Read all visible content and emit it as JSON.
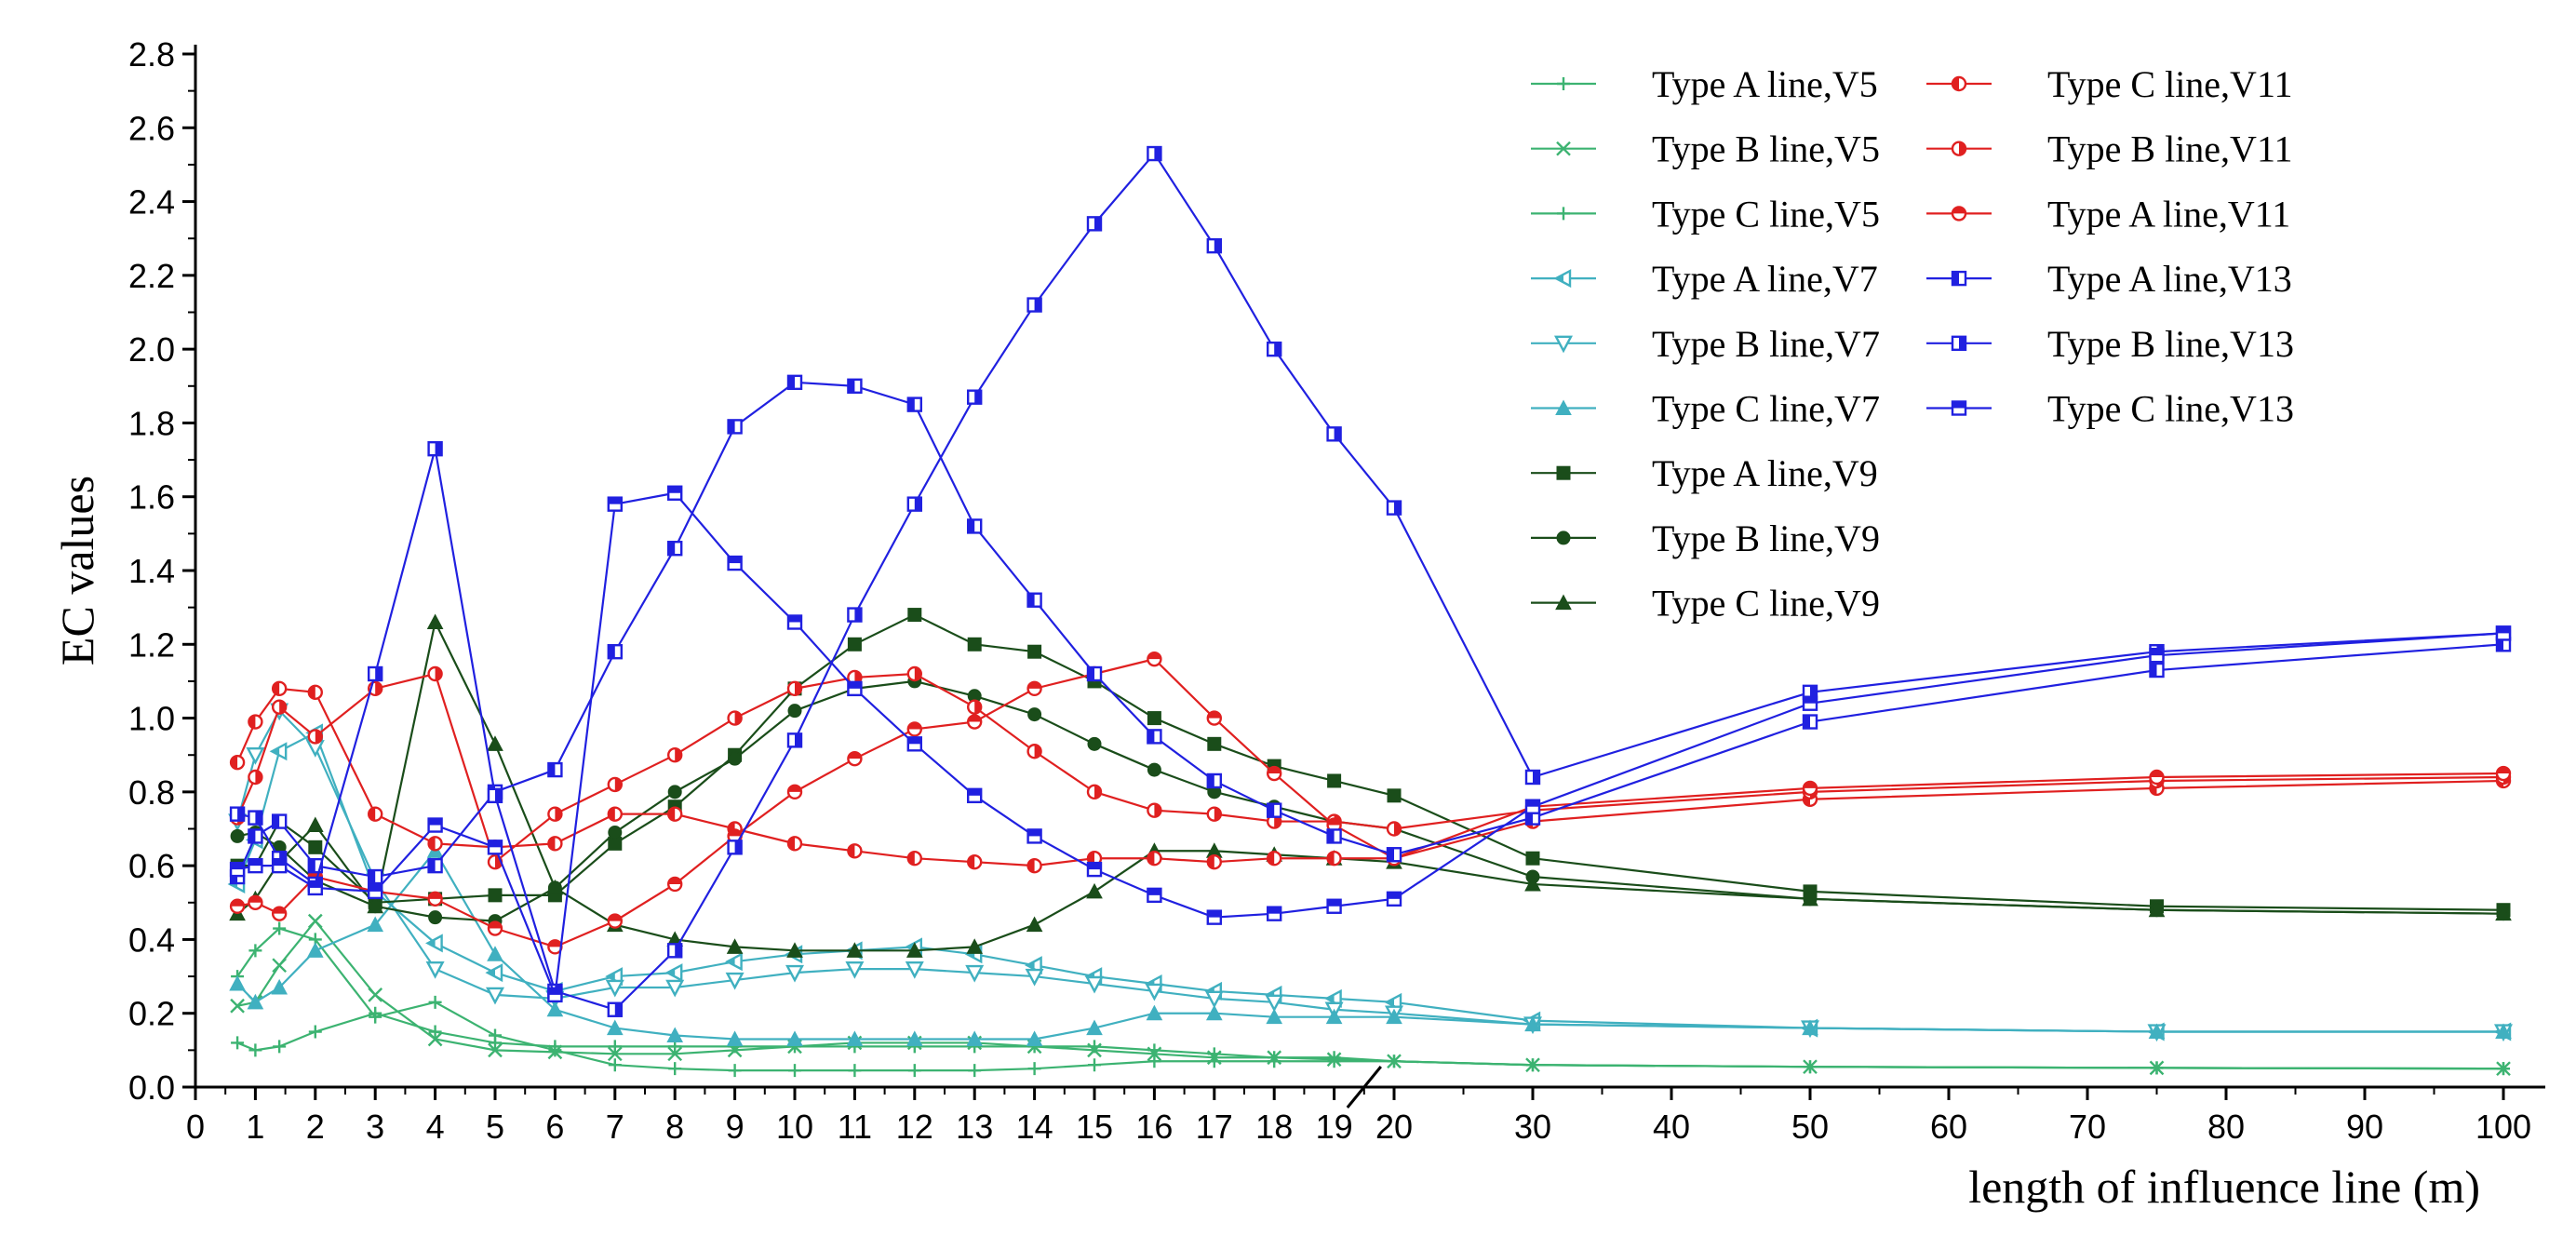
{
  "chart_data": {
    "type": "line",
    "title": "",
    "xlabel": "length of influence line (m)",
    "ylabel": "EC values",
    "ylim": [
      0,
      2.8
    ],
    "y_ticks": [
      "0.0",
      "0.2",
      "0.4",
      "0.6",
      "0.8",
      "1.0",
      "1.2",
      "1.4",
      "1.6",
      "1.8",
      "2.0",
      "2.2",
      "2.4",
      "2.6",
      "2.8"
    ],
    "x_ticks": [
      "0",
      "1",
      "2",
      "3",
      "4",
      "5",
      "6",
      "7",
      "8",
      "9",
      "10",
      "11",
      "12",
      "13",
      "14",
      "15",
      "16",
      "17",
      "18",
      "19",
      "20",
      "30",
      "40",
      "50",
      "60",
      "70",
      "80",
      "90",
      "100"
    ],
    "x_axis_note": "broken axis: linear 0-20 then compressed 20-100",
    "grid": false,
    "legend_position": "top-right",
    "x": [
      0.7,
      1,
      1.4,
      2,
      3,
      4,
      5,
      6,
      7,
      8,
      9,
      10,
      11,
      12,
      13,
      14,
      15,
      16,
      17,
      18,
      19,
      20,
      30,
      50,
      75,
      100
    ],
    "series": [
      {
        "name": "Type A line,V5",
        "color": "#3cb371",
        "marker": "plus",
        "values": [
          0.12,
          0.1,
          0.11,
          0.15,
          0.2,
          0.15,
          0.12,
          0.11,
          0.11,
          0.11,
          0.11,
          0.11,
          0.11,
          0.11,
          0.11,
          0.11,
          0.11,
          0.1,
          0.09,
          0.08,
          0.08,
          0.07,
          0.06,
          0.055,
          0.052,
          0.05
        ]
      },
      {
        "name": "Type B line,V5",
        "color": "#3cb371",
        "marker": "cross",
        "values": [
          0.22,
          0.23,
          0.33,
          0.45,
          0.25,
          0.13,
          0.1,
          0.095,
          0.09,
          0.09,
          0.1,
          0.11,
          0.12,
          0.12,
          0.12,
          0.11,
          0.1,
          0.09,
          0.08,
          0.08,
          0.075,
          0.07,
          0.06,
          0.055,
          0.052,
          0.05
        ]
      },
      {
        "name": "Type C line,V5",
        "color": "#3cb371",
        "marker": "plus",
        "values": [
          0.3,
          0.37,
          0.43,
          0.4,
          0.19,
          0.23,
          0.14,
          0.1,
          0.06,
          0.05,
          0.045,
          0.045,
          0.045,
          0.045,
          0.045,
          0.05,
          0.06,
          0.07,
          0.07,
          0.07,
          0.07,
          0.07,
          0.06,
          0.055,
          0.052,
          0.05
        ]
      },
      {
        "name": "Type A line,V7",
        "color": "#40b0c0",
        "marker": "tri-left",
        "values": [
          0.55,
          0.67,
          0.91,
          0.96,
          0.53,
          0.39,
          0.31,
          0.26,
          0.3,
          0.31,
          0.34,
          0.36,
          0.37,
          0.38,
          0.36,
          0.33,
          0.3,
          0.28,
          0.26,
          0.25,
          0.24,
          0.23,
          0.18,
          0.16,
          0.15,
          0.15
        ]
      },
      {
        "name": "Type B line,V7",
        "color": "#40b0c0",
        "marker": "tri-down",
        "values": [
          0.72,
          0.9,
          1.02,
          0.92,
          0.56,
          0.32,
          0.25,
          0.24,
          0.27,
          0.27,
          0.29,
          0.31,
          0.32,
          0.32,
          0.31,
          0.3,
          0.28,
          0.26,
          0.24,
          0.23,
          0.21,
          0.2,
          0.17,
          0.16,
          0.15,
          0.15
        ]
      },
      {
        "name": "Type C line,V7",
        "color": "#40b0c0",
        "marker": "tri-up",
        "values": [
          0.28,
          0.23,
          0.27,
          0.37,
          0.44,
          0.64,
          0.36,
          0.21,
          0.16,
          0.14,
          0.13,
          0.13,
          0.13,
          0.13,
          0.13,
          0.13,
          0.16,
          0.2,
          0.2,
          0.19,
          0.19,
          0.19,
          0.17,
          0.16,
          0.15,
          0.15
        ]
      },
      {
        "name": "Type A line,V9",
        "color": "#1a4d1a",
        "marker": "square",
        "values": [
          0.6,
          0.6,
          0.72,
          0.65,
          0.5,
          0.51,
          0.52,
          0.52,
          0.66,
          0.76,
          0.9,
          1.08,
          1.2,
          1.28,
          1.2,
          1.18,
          1.1,
          1.0,
          0.93,
          0.87,
          0.83,
          0.79,
          0.62,
          0.53,
          0.49,
          0.48
        ]
      },
      {
        "name": "Type B line,V9",
        "color": "#1a4d1a",
        "marker": "circle",
        "values": [
          0.68,
          0.69,
          0.65,
          0.56,
          0.49,
          0.46,
          0.45,
          0.54,
          0.69,
          0.8,
          0.89,
          1.02,
          1.08,
          1.1,
          1.06,
          1.01,
          0.93,
          0.86,
          0.8,
          0.76,
          0.72,
          0.7,
          0.57,
          0.51,
          0.48,
          0.47
        ]
      },
      {
        "name": "Type C line,V9",
        "color": "#1a4d1a",
        "marker": "tri-up",
        "values": [
          0.47,
          0.51,
          0.61,
          0.71,
          0.49,
          1.26,
          0.93,
          0.54,
          0.44,
          0.4,
          0.38,
          0.37,
          0.37,
          0.37,
          0.38,
          0.44,
          0.53,
          0.64,
          0.64,
          0.63,
          0.62,
          0.61,
          0.55,
          0.51,
          0.48,
          0.47
        ]
      },
      {
        "name": "Type C line,V11",
        "color": "#e02020",
        "marker": "circle-half-left",
        "values": [
          0.88,
          0.99,
          1.08,
          1.07,
          0.74,
          0.66,
          0.65,
          0.66,
          0.74,
          0.74,
          0.7,
          0.66,
          0.64,
          0.62,
          0.61,
          0.6,
          0.62,
          0.62,
          0.61,
          0.62,
          0.62,
          0.62,
          0.72,
          0.78,
          0.81,
          0.83
        ]
      },
      {
        "name": "Type B line,V11",
        "color": "#e02020",
        "marker": "circle-half-right",
        "values": [
          0.73,
          0.84,
          1.03,
          0.95,
          1.08,
          1.12,
          0.61,
          0.74,
          0.82,
          0.9,
          1.0,
          1.08,
          1.11,
          1.12,
          1.03,
          0.91,
          0.8,
          0.75,
          0.74,
          0.72,
          0.72,
          0.7,
          0.75,
          0.8,
          0.83,
          0.84
        ]
      },
      {
        "name": "Type A line,V11",
        "color": "#e02020",
        "marker": "circle-half-top",
        "values": [
          0.49,
          0.5,
          0.47,
          0.57,
          0.53,
          0.51,
          0.43,
          0.38,
          0.45,
          0.55,
          0.68,
          0.8,
          0.89,
          0.97,
          0.99,
          1.08,
          1.12,
          1.16,
          1.0,
          0.85,
          0.71,
          0.62,
          0.76,
          0.81,
          0.84,
          0.85
        ]
      },
      {
        "name": "Type A line,V13",
        "color": "#2020e0",
        "marker": "square-half-left",
        "values": [
          0.57,
          0.68,
          0.72,
          0.6,
          0.57,
          0.6,
          0.8,
          0.86,
          1.18,
          1.46,
          1.79,
          1.91,
          1.9,
          1.85,
          1.52,
          1.32,
          1.12,
          0.95,
          0.83,
          0.75,
          0.68,
          0.63,
          0.73,
          0.99,
          1.13,
          1.2
        ]
      },
      {
        "name": "Type B line,V13",
        "color": "#2020e0",
        "marker": "square-half-right",
        "values": [
          0.74,
          0.73,
          0.62,
          0.55,
          1.12,
          1.73,
          0.79,
          0.26,
          0.21,
          0.37,
          0.65,
          0.94,
          1.28,
          1.58,
          1.87,
          2.12,
          2.34,
          2.53,
          2.28,
          2.0,
          1.77,
          1.57,
          0.84,
          1.07,
          1.18,
          1.23
        ]
      },
      {
        "name": "Type C line,V13",
        "color": "#2020e0",
        "marker": "square-half-top",
        "values": [
          0.59,
          0.6,
          0.6,
          0.54,
          0.53,
          0.71,
          0.65,
          0.25,
          1.58,
          1.61,
          1.42,
          1.26,
          1.08,
          0.93,
          0.79,
          0.68,
          0.59,
          0.52,
          0.46,
          0.47,
          0.49,
          0.51,
          0.76,
          1.04,
          1.17,
          1.23
        ]
      }
    ]
  }
}
